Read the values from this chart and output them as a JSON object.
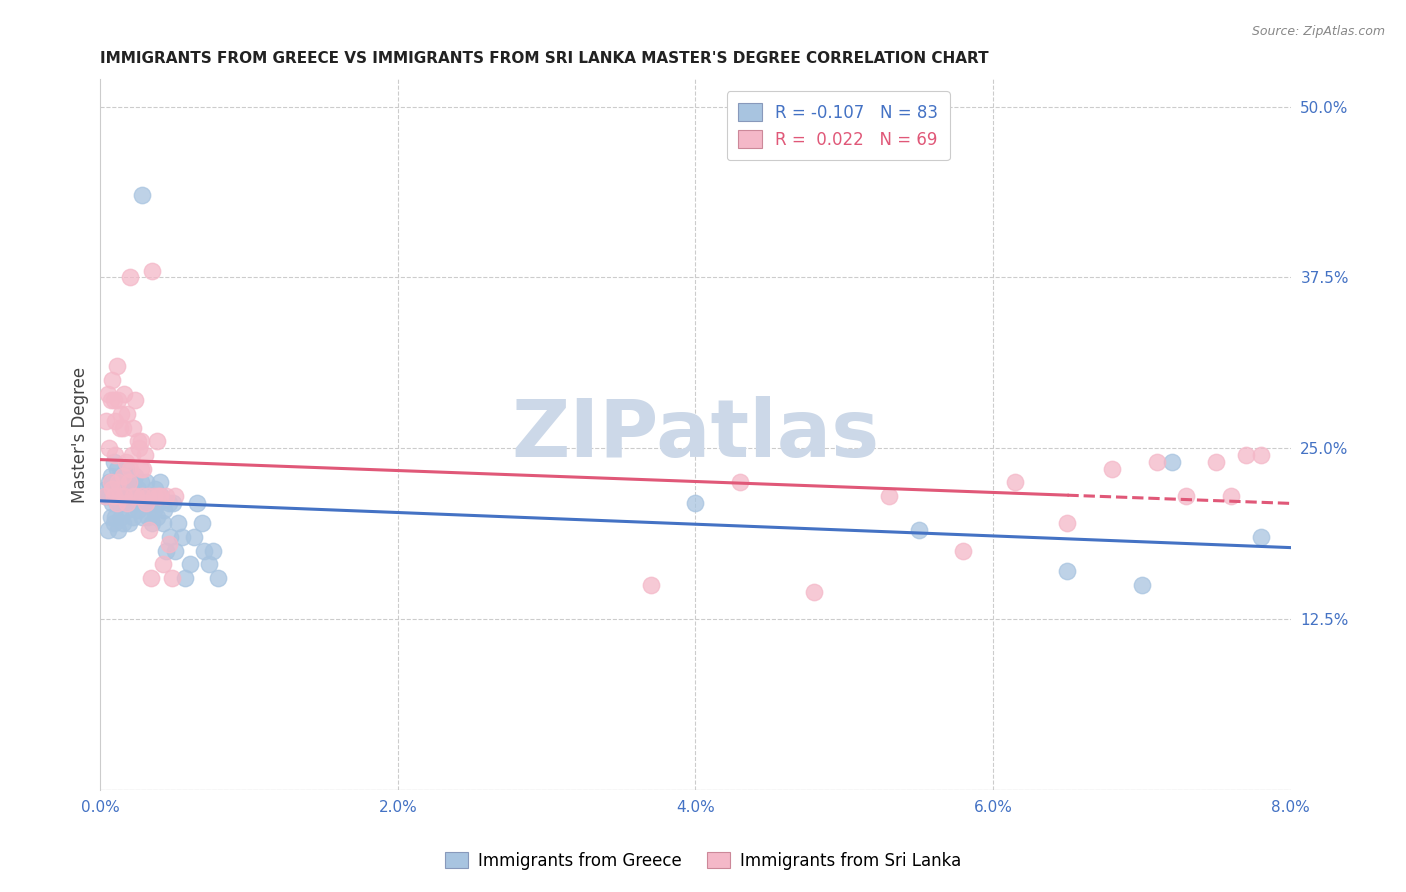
{
  "title": "IMMIGRANTS FROM GREECE VS IMMIGRANTS FROM SRI LANKA MASTER'S DEGREE CORRELATION CHART",
  "source": "Source: ZipAtlas.com",
  "ylabel": "Master's Degree",
  "color_greece": "#a8c4e0",
  "color_sri_lanka": "#f4b8c8",
  "line_color_greece": "#4472c4",
  "line_color_sri_lanka": "#e05878",
  "watermark_text": "ZIPatlas",
  "watermark_color": "#ccd8e8",
  "xmin": 0.0,
  "xmax": 0.08,
  "ymin": 0.0,
  "ymax": 0.52,
  "ytick_vals": [
    0.0,
    0.125,
    0.25,
    0.375,
    0.5
  ],
  "ytick_labels": [
    "",
    "12.5%",
    "25.0%",
    "37.5%",
    "50.0%"
  ],
  "xtick_vals": [
    0.0,
    0.02,
    0.04,
    0.06,
    0.08
  ],
  "xtick_labels": [
    "0.0%",
    "2.0%",
    "4.0%",
    "6.0%",
    "8.0%"
  ],
  "legend_line1": "R = -0.107   N = 83",
  "legend_line2": "R =  0.022   N = 69",
  "legend_color1": "#4472c4",
  "legend_color2": "#e05878",
  "bottom_label1": "Immigrants from Greece",
  "bottom_label2": "Immigrants from Sri Lanka",
  "greece_x": [
    0.0003,
    0.0004,
    0.0005,
    0.0006,
    0.0006,
    0.0007,
    0.0007,
    0.0008,
    0.0008,
    0.0009,
    0.0009,
    0.001,
    0.001,
    0.0011,
    0.0011,
    0.0011,
    0.0012,
    0.0012,
    0.0013,
    0.0013,
    0.0014,
    0.0014,
    0.0015,
    0.0015,
    0.0016,
    0.0016,
    0.0017,
    0.0017,
    0.0018,
    0.0018,
    0.0019,
    0.0019,
    0.002,
    0.002,
    0.0021,
    0.0022,
    0.0022,
    0.0023,
    0.0023,
    0.0024,
    0.0025,
    0.0025,
    0.0026,
    0.0027,
    0.0028,
    0.0028,
    0.0029,
    0.003,
    0.0031,
    0.0032,
    0.0033,
    0.0034,
    0.0035,
    0.0036,
    0.0037,
    0.0038,
    0.0039,
    0.004,
    0.0041,
    0.0042,
    0.0043,
    0.0044,
    0.0046,
    0.0047,
    0.0049,
    0.005,
    0.0052,
    0.0055,
    0.0057,
    0.006,
    0.0063,
    0.0065,
    0.0068,
    0.007,
    0.0073,
    0.0076,
    0.0079,
    0.04,
    0.055,
    0.065,
    0.07,
    0.072,
    0.078
  ],
  "greece_y": [
    0.215,
    0.22,
    0.19,
    0.215,
    0.225,
    0.2,
    0.23,
    0.21,
    0.225,
    0.195,
    0.24,
    0.215,
    0.2,
    0.225,
    0.21,
    0.235,
    0.19,
    0.22,
    0.21,
    0.23,
    0.2,
    0.215,
    0.225,
    0.195,
    0.23,
    0.21,
    0.22,
    0.235,
    0.205,
    0.215,
    0.195,
    0.225,
    0.215,
    0.23,
    0.21,
    0.225,
    0.2,
    0.215,
    0.23,
    0.21,
    0.22,
    0.205,
    0.215,
    0.225,
    0.2,
    0.435,
    0.21,
    0.215,
    0.225,
    0.2,
    0.21,
    0.215,
    0.195,
    0.205,
    0.22,
    0.2,
    0.21,
    0.225,
    0.215,
    0.195,
    0.205,
    0.175,
    0.21,
    0.185,
    0.21,
    0.175,
    0.195,
    0.185,
    0.155,
    0.165,
    0.185,
    0.21,
    0.195,
    0.175,
    0.165,
    0.175,
    0.155,
    0.21,
    0.19,
    0.16,
    0.15,
    0.24,
    0.185
  ],
  "srilanka_x": [
    0.0003,
    0.0004,
    0.0005,
    0.0006,
    0.0007,
    0.0007,
    0.0008,
    0.0008,
    0.0009,
    0.0009,
    0.001,
    0.001,
    0.0011,
    0.0011,
    0.0012,
    0.0012,
    0.0013,
    0.0013,
    0.0014,
    0.0015,
    0.0015,
    0.0016,
    0.0016,
    0.0017,
    0.0018,
    0.0018,
    0.0019,
    0.002,
    0.002,
    0.0021,
    0.0022,
    0.0022,
    0.0023,
    0.0024,
    0.0025,
    0.0026,
    0.0027,
    0.0027,
    0.0028,
    0.0029,
    0.003,
    0.0031,
    0.0032,
    0.0033,
    0.0034,
    0.0035,
    0.0036,
    0.0038,
    0.0039,
    0.004,
    0.0042,
    0.0044,
    0.0046,
    0.0048,
    0.005,
    0.037,
    0.043,
    0.048,
    0.053,
    0.058,
    0.0615,
    0.065,
    0.068,
    0.071,
    0.073,
    0.075,
    0.076,
    0.077,
    0.078
  ],
  "srilanka_y": [
    0.215,
    0.27,
    0.29,
    0.25,
    0.285,
    0.225,
    0.3,
    0.22,
    0.285,
    0.215,
    0.27,
    0.245,
    0.31,
    0.21,
    0.285,
    0.225,
    0.265,
    0.215,
    0.275,
    0.265,
    0.23,
    0.29,
    0.215,
    0.24,
    0.275,
    0.21,
    0.225,
    0.375,
    0.235,
    0.245,
    0.265,
    0.215,
    0.285,
    0.215,
    0.255,
    0.25,
    0.235,
    0.255,
    0.215,
    0.235,
    0.245,
    0.21,
    0.215,
    0.19,
    0.155,
    0.38,
    0.215,
    0.255,
    0.215,
    0.215,
    0.165,
    0.215,
    0.18,
    0.155,
    0.215,
    0.15,
    0.225,
    0.145,
    0.215,
    0.175,
    0.225,
    0.195,
    0.235,
    0.24,
    0.215,
    0.24,
    0.215,
    0.245,
    0.245
  ]
}
